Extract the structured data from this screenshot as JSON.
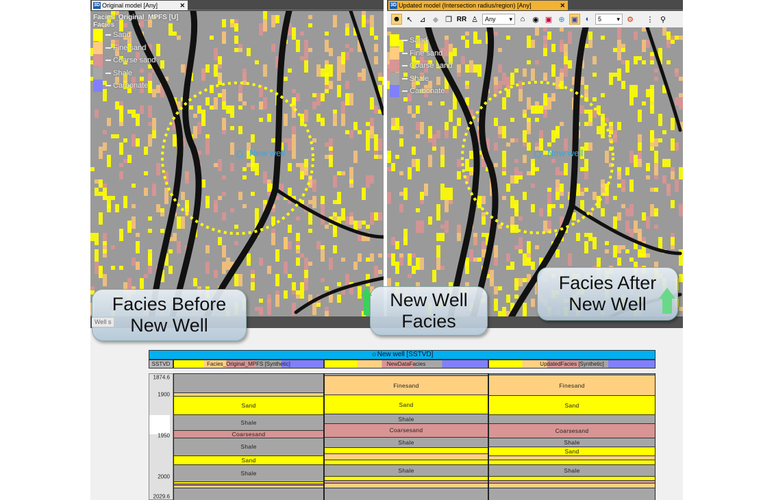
{
  "left_panel": {
    "tab_badge": "3D",
    "tab_title": "Original model [Any]",
    "close": "✕",
    "property_title": "Facies_Original_MPFS [U]",
    "template": "Facies"
  },
  "right_panel": {
    "tab_badge": "3D",
    "tab_title": "Updated model (Intersection radius/region) [Any]",
    "close": "✕",
    "toolbar": {
      "filter_combo": "Any",
      "number_combo": "5"
    }
  },
  "legend": [
    {
      "label": "Sand",
      "color": "#ffff00"
    },
    {
      "label": "Fine sand",
      "color": "#ffcc80"
    },
    {
      "label": "Coarse sand",
      "color": "#d99494"
    },
    {
      "label": "Shale",
      "color": "#a6a6a6"
    },
    {
      "label": "Carbonate",
      "color": "#8080ff"
    }
  ],
  "well_marker": {
    "label": "New well"
  },
  "callouts": {
    "before": "Facies Before New Well",
    "new": "New Well Facies",
    "after": "Facies After New Well"
  },
  "well_section": {
    "tab_label": "Well s",
    "well_header": "☼New well [SSTVD]",
    "axis_label": "SSTVD",
    "depth_range": [
      1874.6,
      2029.6
    ],
    "ticks": [
      "1874.6",
      "1900",
      "1950",
      "2000",
      "2029.6"
    ],
    "tick_values": [
      1874.6,
      1900,
      1950,
      2000,
      2029.6
    ],
    "facies_colors": {
      "Sand": "#ffff00",
      "Finesand": "#ffd080",
      "Coarsesand": "#d99494",
      "Shale": "#a6a6a6"
    },
    "tracks": [
      {
        "header": "Facies_Original_MPFS [Synthetic]",
        "layers": [
          {
            "facies": "Shale",
            "top": 1874.6,
            "base": 1898.2,
            "label": ""
          },
          {
            "facies": "Finesand",
            "top": 1898.2,
            "base": 1902.4,
            "label": ""
          },
          {
            "facies": "Sand",
            "top": 1902.4,
            "base": 1925.2,
            "label": "Sand"
          },
          {
            "facies": "Shale",
            "top": 1925.2,
            "base": 1943.8,
            "label": "Shale"
          },
          {
            "facies": "Coarsesand",
            "top": 1943.8,
            "base": 1953.1,
            "label": "Coarsesand"
          },
          {
            "facies": "Shale",
            "top": 1953.1,
            "base": 1975.0,
            "label": "Shale"
          },
          {
            "facies": "Sand",
            "top": 1975.0,
            "base": 1986.0,
            "label": "Sand"
          },
          {
            "facies": "Shale",
            "top": 1986.0,
            "base": 2007.1,
            "label": "Shale"
          },
          {
            "facies": "Sand",
            "top": 2007.1,
            "base": 2009.6,
            "label": ""
          },
          {
            "facies": "Coarsesand",
            "top": 2009.6,
            "base": 2011.3,
            "label": ""
          },
          {
            "facies": "Finesand",
            "top": 2011.3,
            "base": 2014.7,
            "label": ""
          },
          {
            "facies": "Shale",
            "top": 2014.7,
            "base": 2029.6,
            "label": ""
          }
        ]
      },
      {
        "header": "NewDataFacies",
        "layers": [
          {
            "facies": "Shale",
            "top": 1874.6,
            "base": 1877.1,
            "label": ""
          },
          {
            "facies": "Finesand",
            "top": 1877.1,
            "base": 1900.8,
            "label": "Finesand"
          },
          {
            "facies": "Sand",
            "top": 1900.8,
            "base": 1924.4,
            "label": "Sand"
          },
          {
            "facies": "Shale",
            "top": 1924.4,
            "base": 1935.4,
            "label": "Shale"
          },
          {
            "facies": "Coarsesand",
            "top": 1935.4,
            "base": 1952.2,
            "label": "Coarsesand"
          },
          {
            "facies": "Shale",
            "top": 1952.2,
            "base": 1964.9,
            "label": "Shale"
          },
          {
            "facies": "Sand",
            "top": 1964.9,
            "base": 1972.5,
            "label": ""
          },
          {
            "facies": "Finesand",
            "top": 1972.5,
            "base": 1980.1,
            "label": ""
          },
          {
            "facies": "Sand",
            "top": 1980.1,
            "base": 1986.0,
            "label": ""
          },
          {
            "facies": "Shale",
            "top": 1986.0,
            "base": 2000.3,
            "label": "Shale"
          },
          {
            "facies": "Sand",
            "top": 2000.3,
            "base": 2005.4,
            "label": ""
          },
          {
            "facies": "Coarsesand",
            "top": 2005.4,
            "base": 2008.8,
            "label": ""
          },
          {
            "facies": "Finesand",
            "top": 2008.8,
            "base": 2014.7,
            "label": ""
          },
          {
            "facies": "Shale",
            "top": 2014.7,
            "base": 2029.6,
            "label": ""
          }
        ]
      },
      {
        "header": "UpdatedFacies [Synthetic]",
        "layers": [
          {
            "facies": "Shale",
            "top": 1874.6,
            "base": 1876.3,
            "label": ""
          },
          {
            "facies": "Finesand",
            "top": 1876.3,
            "base": 1901.6,
            "label": "Finesand"
          },
          {
            "facies": "Sand",
            "top": 1901.6,
            "base": 1925.2,
            "label": "Sand"
          },
          {
            "facies": "Shale",
            "top": 1925.2,
            "base": 1935.4,
            "label": ""
          },
          {
            "facies": "Coarsesand",
            "top": 1935.4,
            "base": 1953.1,
            "label": "Coarsesand"
          },
          {
            "facies": "Shale",
            "top": 1953.1,
            "base": 1964.1,
            "label": "Shale"
          },
          {
            "facies": "Sand",
            "top": 1964.1,
            "base": 1975.0,
            "label": "Sand"
          },
          {
            "facies": "Finesand",
            "top": 1975.0,
            "base": 1980.1,
            "label": ""
          },
          {
            "facies": "Sand",
            "top": 1980.1,
            "base": 1986.0,
            "label": ""
          },
          {
            "facies": "Shale",
            "top": 1986.0,
            "base": 2000.3,
            "label": "Shale"
          },
          {
            "facies": "Sand",
            "top": 2000.3,
            "base": 2005.4,
            "label": ""
          },
          {
            "facies": "Coarsesand",
            "top": 2005.4,
            "base": 2008.8,
            "label": ""
          },
          {
            "facies": "Finesand",
            "top": 2008.8,
            "base": 2014.7,
            "label": ""
          },
          {
            "facies": "Shale",
            "top": 2014.7,
            "base": 2029.6,
            "label": ""
          }
        ]
      }
    ]
  }
}
